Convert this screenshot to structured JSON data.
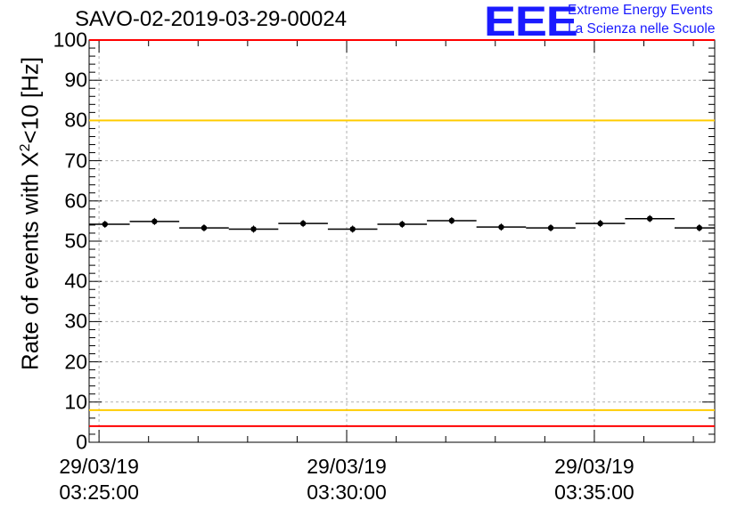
{
  "title": "SAVO-02-2019-03-29-00024",
  "logo": {
    "mark": "EEE",
    "line1": "Extreme Energy Events",
    "line2": "La Scienza nelle Scuole"
  },
  "colors": {
    "points": "#000000",
    "red_limit": "#ff0000",
    "yellow_limit": "#ffcc00",
    "grid": "#b0b0b0",
    "logo": "#1a1aff"
  },
  "chart_data": {
    "type": "scatter",
    "title": "SAVO-02-2019-03-29-00024",
    "ylabel_prefix": "Rate of events with ",
    "ylabel_symbol": "X",
    "ylabel_sup": "2",
    "ylabel_suffix": "<10 [Hz]",
    "xlabel": "",
    "ylim": [
      0,
      100
    ],
    "xlim_minutes": [
      -0.2,
      12.43
    ],
    "yticks": [
      "0",
      "10",
      "20",
      "30",
      "40",
      "50",
      "60",
      "70",
      "80",
      "90",
      "100"
    ],
    "xticks": [
      {
        "at": 0,
        "date": "29/03/19",
        "time": "03:25:00"
      },
      {
        "at": 5,
        "date": "29/03/19",
        "time": "03:30:00"
      },
      {
        "at": 10,
        "date": "29/03/19",
        "time": "03:35:00"
      }
    ],
    "bin_width_minutes": 1,
    "points": [
      {
        "x": 0.12,
        "y": 54.2
      },
      {
        "x": 1.12,
        "y": 54.9
      },
      {
        "x": 2.12,
        "y": 53.3
      },
      {
        "x": 3.12,
        "y": 53.0
      },
      {
        "x": 4.12,
        "y": 54.4
      },
      {
        "x": 5.12,
        "y": 53.0
      },
      {
        "x": 6.12,
        "y": 54.2
      },
      {
        "x": 7.12,
        "y": 55.1
      },
      {
        "x": 8.12,
        "y": 53.5
      },
      {
        "x": 9.12,
        "y": 53.3
      },
      {
        "x": 10.12,
        "y": 54.4
      },
      {
        "x": 11.12,
        "y": 55.6
      },
      {
        "x": 12.12,
        "y": 53.3
      }
    ],
    "limits": [
      {
        "name": "upper-red",
        "y": 100,
        "color": "#ff0000"
      },
      {
        "name": "upper-yellow",
        "y": 80,
        "color": "#ffcc00"
      },
      {
        "name": "lower-yellow",
        "y": 8,
        "color": "#ffcc00"
      },
      {
        "name": "lower-red",
        "y": 4,
        "color": "#ff0000"
      }
    ],
    "grid": true
  }
}
